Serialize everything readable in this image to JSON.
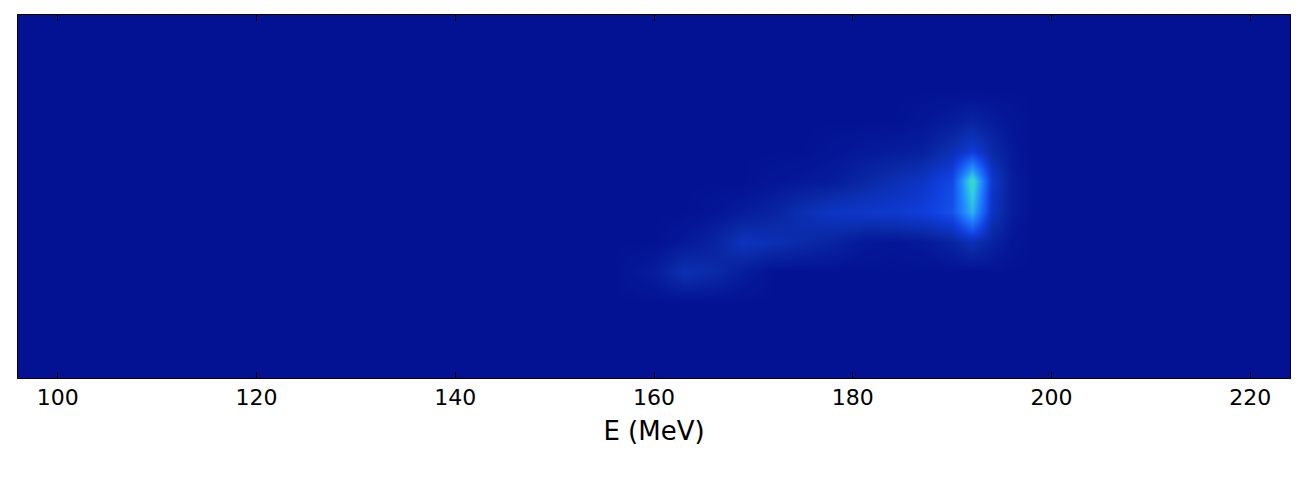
{
  "chart_data": {
    "type": "heatmap",
    "xlabel": "E (MeV)",
    "x": [
      100,
      110,
      120,
      130,
      140,
      150,
      156,
      160,
      163,
      166,
      169,
      172,
      175,
      178,
      181,
      184,
      187,
      190,
      192,
      194,
      196,
      198,
      202,
      210,
      220
    ],
    "y": [
      0,
      1,
      2,
      3,
      4,
      5,
      6,
      7,
      8,
      9,
      10,
      11
    ],
    "z": [
      [
        3,
        3,
        3,
        3,
        3,
        3,
        3,
        3,
        3,
        3,
        3,
        3,
        3,
        3,
        3,
        3,
        3,
        3,
        3,
        3,
        3,
        3,
        3,
        3,
        3
      ],
      [
        3,
        3,
        3,
        3,
        3,
        3,
        3,
        3,
        3,
        3,
        3,
        3,
        3,
        3,
        3,
        3,
        3,
        3,
        3,
        3,
        3,
        3,
        3,
        3,
        3
      ],
      [
        3,
        3,
        3,
        3,
        3,
        3,
        3,
        3,
        3,
        3,
        3,
        3,
        3,
        3,
        3,
        3,
        3,
        3,
        3,
        3,
        3,
        3,
        3,
        3,
        3
      ],
      [
        3,
        3,
        3,
        3,
        3,
        3,
        3,
        6,
        12,
        10,
        6,
        3,
        3,
        3,
        3,
        3,
        3,
        3,
        3,
        3,
        3,
        3,
        3,
        3,
        3
      ],
      [
        3,
        3,
        3,
        3,
        3,
        3,
        3,
        3,
        5,
        8,
        14,
        12,
        10,
        8,
        5,
        4,
        5,
        8,
        12,
        8,
        4,
        3,
        3,
        3,
        3
      ],
      [
        3,
        3,
        3,
        3,
        3,
        3,
        3,
        3,
        3,
        4,
        6,
        8,
        12,
        15,
        16,
        17,
        19,
        24,
        45,
        14,
        6,
        3,
        3,
        3,
        3
      ],
      [
        3,
        3,
        3,
        3,
        3,
        3,
        3,
        3,
        3,
        3,
        3,
        4,
        5,
        6,
        9,
        12,
        15,
        22,
        55,
        16,
        6,
        3,
        3,
        3,
        3
      ],
      [
        3,
        3,
        3,
        3,
        3,
        3,
        3,
        3,
        3,
        3,
        3,
        3,
        3,
        4,
        5,
        6,
        7,
        12,
        18,
        10,
        5,
        3,
        3,
        3,
        3
      ],
      [
        3,
        3,
        3,
        3,
        3,
        3,
        3,
        3,
        3,
        3,
        3,
        3,
        3,
        3,
        3,
        3,
        4,
        6,
        8,
        6,
        4,
        3,
        3,
        3,
        3
      ],
      [
        3,
        3,
        3,
        3,
        3,
        3,
        3,
        3,
        3,
        3,
        3,
        3,
        3,
        3,
        3,
        3,
        3,
        3,
        3,
        3,
        3,
        3,
        3,
        3,
        3
      ],
      [
        3,
        3,
        3,
        3,
        3,
        3,
        3,
        3,
        3,
        3,
        3,
        3,
        3,
        3,
        3,
        3,
        3,
        3,
        3,
        3,
        3,
        3,
        3,
        3,
        3
      ],
      [
        3,
        3,
        3,
        3,
        3,
        3,
        3,
        3,
        3,
        3,
        3,
        3,
        3,
        3,
        3,
        3,
        3,
        3,
        3,
        3,
        3,
        3,
        3,
        3,
        3
      ]
    ],
    "xlim": [
      96,
      224
    ],
    "xticks": [
      100,
      120,
      140,
      160,
      180,
      200,
      220
    ],
    "ylim": [
      -0.5,
      11.5
    ],
    "zlim": [
      0,
      100
    ],
    "tick_labels": "x"
  }
}
